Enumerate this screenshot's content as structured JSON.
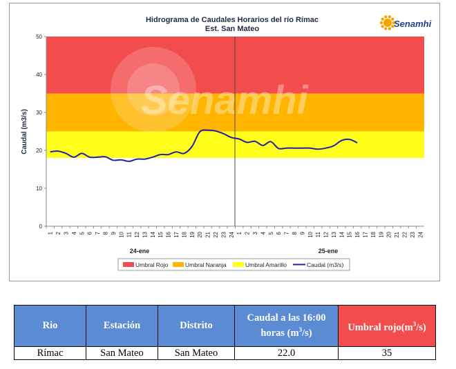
{
  "chart_data": {
    "type": "line",
    "title": "Hidrograma  de Caudales Horarios  del río Rímac",
    "subtitle": "Est. San Mateo",
    "ylabel": "Caudal (m3/s)",
    "ylim": [
      0,
      50
    ],
    "yticks": [
      "0",
      "10",
      "20",
      "30",
      "40",
      "50"
    ],
    "day_labels": [
      "24-ene",
      "25-ene"
    ],
    "hour_ticks": [
      "1",
      "2",
      "3",
      "4",
      "5",
      "6",
      "7",
      "8",
      "9",
      "10",
      "11",
      "12",
      "13",
      "14",
      "15",
      "16",
      "17",
      "18",
      "19",
      "20",
      "21",
      "22",
      "23",
      "24"
    ],
    "bands": [
      {
        "name": "Umbral Rojo",
        "from": 35,
        "to": 50,
        "color": "#f24c4c"
      },
      {
        "name": "Umbral Naranja",
        "from": 25,
        "to": 35,
        "color": "#ffb400"
      },
      {
        "name": "Umbral Amarillo",
        "from": 18,
        "to": 25,
        "color": "#ffff1a"
      }
    ],
    "series": [
      {
        "name": "Caudal (m3/s)",
        "color": "#1f1fa8",
        "values": [
          19.6,
          19.8,
          19.2,
          18.2,
          19.2,
          18.2,
          18.2,
          18.3,
          17.4,
          17.5,
          17.1,
          17.7,
          17.7,
          18.2,
          18.9,
          18.9,
          19.6,
          19.2,
          21.0,
          24.9,
          25.3,
          25.1,
          24.4,
          23.4,
          23.0,
          22.1,
          22.4,
          21.3,
          22.3,
          20.5,
          20.6,
          20.6,
          20.6,
          20.6,
          20.3,
          20.6,
          21.2,
          22.6,
          22.9,
          22.0
        ]
      }
    ],
    "grid": false,
    "legend": "bottom"
  },
  "legend": [
    {
      "label": "Umbral Rojo",
      "color": "#f24c4c"
    },
    {
      "label": "Umbral Naranja",
      "color": "#ffb400"
    },
    {
      "label": "Umbral Amarillo",
      "color": "#ffff1a"
    },
    {
      "label": "Caudal (m3/s)",
      "color": "#1f1fa8"
    }
  ],
  "logo": {
    "text": "Senamhi",
    "color": "#1f3f8f",
    "sun_color": "#f5a400"
  },
  "watermark": "Senamhi",
  "table": {
    "headers": {
      "rio": "Rio",
      "estacion": "Estación",
      "distrito": "Distrito",
      "caudal_main": "Caudal a las 16:00 horas",
      "caudal_unit": "(m",
      "caudal_sup": "3",
      "caudal_end": "/s)",
      "umbral_main": "Umbral rojo(m",
      "umbral_sup": "3",
      "umbral_end": "/s)"
    },
    "row": {
      "rio": "Rímac",
      "estacion": "San Mateo",
      "distrito": "San Mateo",
      "caudal": "22.0",
      "umbral": "35"
    }
  }
}
